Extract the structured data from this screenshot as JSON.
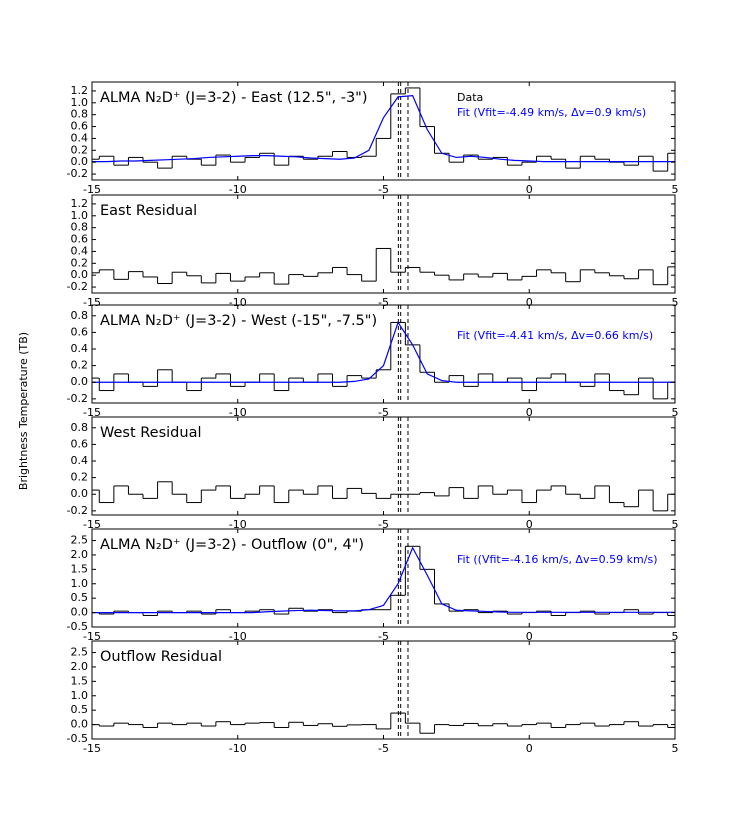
{
  "ylabel": "Brightness Temperature (TB)",
  "chart_data": [
    {
      "type": "line",
      "title": "ALMA N₂D⁺ (J=3-2) - East (12.5\", -3\")",
      "x": [
        -15,
        -14.5,
        -14,
        -13.5,
        -13,
        -12.5,
        -12,
        -11.5,
        -11,
        -10.5,
        -10,
        -9.5,
        -9,
        -8.5,
        -8,
        -7.5,
        -7,
        -6.5,
        -6,
        -5.5,
        -5,
        -4.5,
        -4,
        -3.5,
        -3,
        -2.5,
        -2,
        -1.5,
        -1,
        -0.5,
        0,
        0.5,
        1,
        1.5,
        2,
        2.5,
        3,
        3.5,
        4,
        4.5,
        5
      ],
      "series": [
        {
          "name": "Data",
          "color": "#000000",
          "step": true,
          "values": [
            0.05,
            0.1,
            -0.05,
            0.08,
            0.0,
            -0.1,
            0.1,
            0.05,
            -0.05,
            0.12,
            0.0,
            0.08,
            0.15,
            -0.05,
            0.1,
            0.05,
            0.1,
            0.18,
            0.08,
            0.1,
            0.4,
            1.15,
            1.25,
            0.6,
            0.15,
            0.0,
            0.12,
            0.05,
            0.08,
            -0.05,
            0.0,
            0.1,
            0.05,
            -0.1,
            0.1,
            0.05,
            0.0,
            -0.05,
            0.1,
            -0.15,
            0.15
          ]
        },
        {
          "name": "Fit (Vfit=-4.49 km/s, Δv=0.9 km/s)",
          "color": "#0000ff",
          "values": [
            0.01,
            0.01,
            0.02,
            0.02,
            0.03,
            0.04,
            0.05,
            0.06,
            0.08,
            0.09,
            0.1,
            0.11,
            0.11,
            0.1,
            0.09,
            0.07,
            0.06,
            0.05,
            0.07,
            0.2,
            0.75,
            1.1,
            1.12,
            0.55,
            0.15,
            0.08,
            0.1,
            0.08,
            0.05,
            0.03,
            0.02,
            0.01,
            0.01,
            0.01,
            0.01,
            0.01,
            0.01,
            0.01,
            0.01,
            0.01,
            0.01
          ]
        }
      ],
      "xlim": [
        -15,
        5
      ],
      "xticks": [
        -15,
        -10,
        -5,
        0,
        5
      ],
      "ylim": [
        -0.3,
        1.35
      ],
      "yticks": [
        -0.2,
        {
          "value": 0,
          "label": "0.0"
        },
        0.2,
        0.4,
        0.6,
        0.8,
        {
          "value": 1,
          "label": "1.0"
        },
        1.2
      ],
      "vlines": [
        -4.49,
        -4.41,
        -4.16
      ]
    },
    {
      "type": "line",
      "title": "East Residual",
      "x": [
        -15,
        -14.5,
        -14,
        -13.5,
        -13,
        -12.5,
        -12,
        -11.5,
        -11,
        -10.5,
        -10,
        -9.5,
        -9,
        -8.5,
        -8,
        -7.5,
        -7,
        -6.5,
        -6,
        -5.5,
        -5,
        -4.5,
        -4,
        -3.5,
        -3,
        -2.5,
        -2,
        -1.5,
        -1,
        -0.5,
        0,
        0.5,
        1,
        1.5,
        2,
        2.5,
        3,
        3.5,
        4,
        4.5,
        5
      ],
      "series": [
        {
          "color": "#000000",
          "step": true,
          "values": [
            0.04,
            0.09,
            -0.07,
            0.06,
            -0.03,
            -0.14,
            0.05,
            -0.01,
            -0.13,
            0.03,
            -0.1,
            -0.03,
            0.04,
            -0.15,
            0.01,
            -0.02,
            0.04,
            0.13,
            0.01,
            -0.1,
            0.45,
            0.05,
            0.13,
            0.05,
            0.0,
            -0.08,
            0.02,
            -0.03,
            0.03,
            -0.08,
            -0.02,
            0.09,
            0.04,
            -0.11,
            0.09,
            0.04,
            -0.01,
            -0.06,
            0.09,
            -0.16,
            0.14
          ]
        }
      ],
      "xlim": [
        -15,
        5
      ],
      "xticks": [
        -15,
        -10,
        -5,
        0,
        5
      ],
      "ylim": [
        -0.3,
        1.35
      ],
      "yticks": [
        -0.2,
        {
          "value": 0,
          "label": "0.0"
        },
        0.2,
        0.4,
        0.6,
        0.8,
        {
          "value": 1,
          "label": "1.0"
        },
        1.2
      ],
      "vlines": [
        -4.49,
        -4.41,
        -4.16
      ]
    },
    {
      "type": "line",
      "title": "ALMA N₂D⁺ (J=3-2) - West (-15\", -7.5\")",
      "x": [
        -15,
        -14.5,
        -14,
        -13.5,
        -13,
        -12.5,
        -12,
        -11.5,
        -11,
        -10.5,
        -10,
        -9.5,
        -9,
        -8.5,
        -8,
        -7.5,
        -7,
        -6.5,
        -6,
        -5.5,
        -5,
        -4.5,
        -4,
        -3.5,
        -3,
        -2.5,
        -2,
        -1.5,
        -1,
        -0.5,
        0,
        0.5,
        1,
        1.5,
        2,
        2.5,
        3,
        3.5,
        4,
        4.5,
        5
      ],
      "series": [
        {
          "color": "#000000",
          "step": true,
          "values": [
            0.05,
            -0.1,
            0.1,
            0.0,
            -0.05,
            0.15,
            0.0,
            -0.1,
            0.05,
            0.1,
            -0.05,
            0.0,
            0.1,
            -0.1,
            0.05,
            0.0,
            0.1,
            -0.05,
            0.08,
            0.05,
            0.15,
            0.72,
            0.45,
            0.12,
            0.0,
            0.08,
            -0.05,
            0.1,
            0.0,
            0.05,
            -0.1,
            0.05,
            0.1,
            0.0,
            -0.05,
            0.1,
            -0.1,
            -0.15,
            0.05,
            -0.2,
            0.0
          ]
        },
        {
          "name": "Fit (Vfit=-4.41 km/s, Δv=0.66 km/s)",
          "color": "#0000ff",
          "values": [
            0,
            0,
            0,
            0,
            0,
            0,
            0,
            0,
            0,
            0,
            0,
            0,
            0,
            0,
            0,
            0,
            0,
            0,
            0.01,
            0.04,
            0.2,
            0.72,
            0.45,
            0.1,
            0.02,
            0,
            0,
            0,
            0,
            0,
            0,
            0,
            0,
            0,
            0,
            0,
            0,
            0,
            0,
            0,
            0
          ]
        }
      ],
      "xlim": [
        -15,
        5
      ],
      "xticks": [
        -15,
        -10,
        -5,
        0,
        5
      ],
      "ylim": [
        -0.25,
        0.93
      ],
      "yticks": [
        -0.2,
        {
          "value": 0,
          "label": "0.0"
        },
        0.2,
        0.4,
        0.6,
        0.8
      ],
      "vlines": [
        -4.49,
        -4.41,
        -4.16
      ]
    },
    {
      "type": "line",
      "title": "West Residual",
      "x": [
        -15,
        -14.5,
        -14,
        -13.5,
        -13,
        -12.5,
        -12,
        -11.5,
        -11,
        -10.5,
        -10,
        -9.5,
        -9,
        -8.5,
        -8,
        -7.5,
        -7,
        -6.5,
        -6,
        -5.5,
        -5,
        -4.5,
        -4,
        -3.5,
        -3,
        -2.5,
        -2,
        -1.5,
        -1,
        -0.5,
        0,
        0.5,
        1,
        1.5,
        2,
        2.5,
        3,
        3.5,
        4,
        4.5,
        5
      ],
      "series": [
        {
          "color": "#000000",
          "step": true,
          "values": [
            0.05,
            -0.1,
            0.1,
            0.0,
            -0.05,
            0.15,
            0.0,
            -0.1,
            0.05,
            0.1,
            -0.05,
            0.0,
            0.1,
            -0.1,
            0.05,
            0.0,
            0.1,
            -0.05,
            0.07,
            0.01,
            -0.05,
            0.0,
            0.0,
            0.02,
            -0.02,
            0.08,
            -0.05,
            0.1,
            0.0,
            0.05,
            -0.1,
            0.05,
            0.1,
            0.0,
            -0.05,
            0.1,
            -0.1,
            -0.15,
            0.05,
            -0.2,
            0.0
          ]
        }
      ],
      "xlim": [
        -15,
        5
      ],
      "xticks": [
        -15,
        -10,
        -5,
        0,
        5
      ],
      "ylim": [
        -0.25,
        0.93
      ],
      "yticks": [
        -0.2,
        {
          "value": 0,
          "label": "0.0"
        },
        0.2,
        0.4,
        0.6,
        0.8
      ],
      "vlines": [
        -4.49,
        -4.41,
        -4.16
      ]
    },
    {
      "type": "line",
      "title": "ALMA N₂D⁺ (J=3-2) - Outflow (0\", 4\")",
      "x": [
        -15,
        -14.5,
        -14,
        -13.5,
        -13,
        -12.5,
        -12,
        -11.5,
        -11,
        -10.5,
        -10,
        -9.5,
        -9,
        -8.5,
        -8,
        -7.5,
        -7,
        -6.5,
        -6,
        -5.5,
        -5,
        -4.5,
        -4,
        -3.5,
        -3,
        -2.5,
        -2,
        -1.5,
        -1,
        -0.5,
        0,
        0.5,
        1,
        1.5,
        2,
        2.5,
        3,
        3.5,
        4,
        4.5,
        5
      ],
      "series": [
        {
          "color": "#000000",
          "step": true,
          "values": [
            0.0,
            -0.05,
            0.05,
            0.0,
            -0.1,
            0.05,
            0.0,
            0.05,
            -0.05,
            0.1,
            0.0,
            0.05,
            0.1,
            -0.05,
            0.15,
            0.05,
            0.1,
            0.0,
            0.05,
            0.1,
            0.1,
            0.6,
            2.3,
            1.5,
            0.3,
            0.05,
            0.1,
            0.0,
            0.05,
            -0.05,
            0.0,
            0.05,
            -0.1,
            0.0,
            0.05,
            -0.05,
            0.0,
            0.1,
            -0.05,
            0.0,
            -0.1
          ]
        },
        {
          "name": "Fit ((Vfit=-4.16 km/s, Δv=0.59 km/s)",
          "color": "#0000ff",
          "values": [
            0,
            0,
            0,
            0,
            0,
            0,
            0,
            0,
            0,
            0,
            0,
            0,
            0.03,
            0.05,
            0.07,
            0.08,
            0.07,
            0.06,
            0.06,
            0.1,
            0.25,
            1.0,
            2.25,
            1.3,
            0.3,
            0.08,
            0.06,
            0.04,
            0.02,
            0.01,
            0.01,
            0.01,
            0.01,
            0.01,
            0.01,
            0.01,
            0.01,
            0.01,
            0.01,
            0.01,
            0.01
          ]
        }
      ],
      "xlim": [
        -15,
        5
      ],
      "xticks": [
        -15,
        -10,
        -5,
        0,
        5
      ],
      "ylim": [
        -0.5,
        2.9
      ],
      "yticks": [
        -0.5,
        {
          "value": 0,
          "label": "0.0"
        },
        0.5,
        {
          "value": 1,
          "label": "1.0"
        },
        1.5,
        {
          "value": 2,
          "label": "2.0"
        },
        2.5
      ],
      "vlines": [
        -4.49,
        -4.41,
        -4.16
      ]
    },
    {
      "type": "line",
      "title": "Outflow Residual",
      "x": [
        -15,
        -14.5,
        -14,
        -13.5,
        -13,
        -12.5,
        -12,
        -11.5,
        -11,
        -10.5,
        -10,
        -9.5,
        -9,
        -8.5,
        -8,
        -7.5,
        -7,
        -6.5,
        -6,
        -5.5,
        -5,
        -4.5,
        -4,
        -3.5,
        -3,
        -2.5,
        -2,
        -1.5,
        -1,
        -0.5,
        0,
        0.5,
        1,
        1.5,
        2,
        2.5,
        3,
        3.5,
        4,
        4.5,
        5
      ],
      "series": [
        {
          "color": "#000000",
          "step": true,
          "values": [
            0.0,
            -0.05,
            0.05,
            0.0,
            -0.1,
            0.05,
            0.0,
            0.05,
            -0.05,
            0.1,
            0.0,
            0.05,
            0.07,
            -0.1,
            0.08,
            -0.03,
            0.03,
            -0.06,
            -0.01,
            0.0,
            -0.15,
            0.4,
            0.05,
            -0.3,
            0.0,
            -0.03,
            0.04,
            -0.04,
            0.03,
            -0.05,
            0.0,
            0.05,
            -0.1,
            0.0,
            0.05,
            -0.05,
            0.0,
            0.1,
            -0.05,
            0.0,
            -0.1
          ]
        }
      ],
      "xlim": [
        -15,
        5
      ],
      "xticks": [
        -15,
        -10,
        -5,
        0,
        5
      ],
      "ylim": [
        -0.5,
        2.9
      ],
      "yticks": [
        -0.5,
        {
          "value": 0,
          "label": "0.0"
        },
        0.5,
        {
          "value": 1,
          "label": "1.0"
        },
        1.5,
        {
          "value": 2,
          "label": "2.0"
        },
        2.5
      ],
      "vlines": [
        -4.49,
        -4.41,
        -4.16
      ]
    }
  ]
}
